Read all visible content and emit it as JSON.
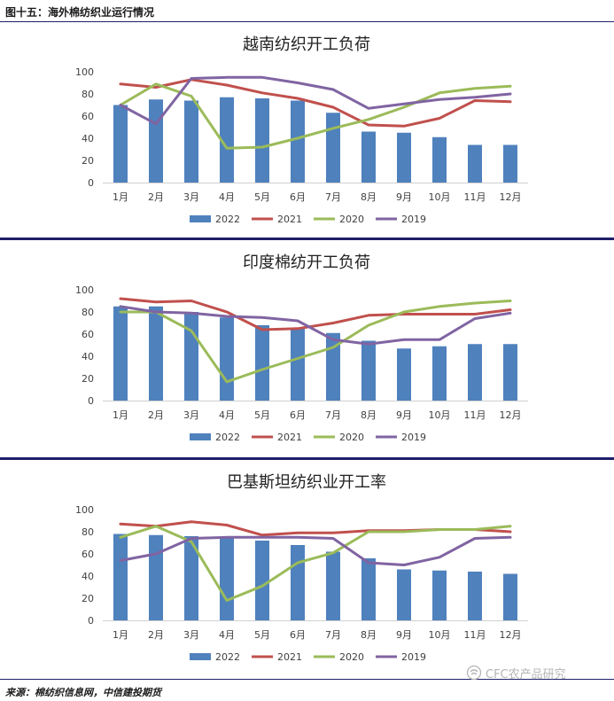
{
  "figure_title": "图十五：海外棉纺织业运行情况",
  "source": "来源：棉纺织信息网，中信建投期货",
  "watermark": "CFC农产品研究",
  "colors": {
    "2022": "#4f81bd",
    "2021": "#c0504d",
    "2020": "#9bbb59",
    "2019": "#8064a2"
  },
  "chart_data": [
    {
      "type": "bar",
      "title": "越南纺织开工负荷",
      "categories": [
        "1月",
        "2月",
        "3月",
        "4月",
        "5月",
        "6月",
        "7月",
        "8月",
        "9月",
        "10月",
        "11月",
        "12月"
      ],
      "ylim": [
        0,
        100
      ],
      "yticks": [
        0,
        20,
        40,
        60,
        80,
        100
      ],
      "grid": false,
      "legend": "bottom",
      "series": [
        {
          "name": "2022",
          "type": "bar",
          "values": [
            70,
            75,
            74,
            77,
            76,
            74,
            63,
            46,
            45,
            41,
            34,
            34
          ]
        },
        {
          "name": "2021",
          "type": "line",
          "values": [
            89,
            86,
            93,
            88,
            81,
            76,
            68,
            52,
            51,
            58,
            74,
            73
          ]
        },
        {
          "name": "2020",
          "type": "line",
          "values": [
            70,
            89,
            78,
            31,
            32,
            40,
            49,
            57,
            68,
            81,
            85,
            87
          ]
        },
        {
          "name": "2019",
          "type": "line",
          "values": [
            70,
            53,
            94,
            95,
            95,
            90,
            84,
            67,
            71,
            75,
            77,
            80
          ]
        }
      ]
    },
    {
      "type": "bar",
      "title": "印度棉纺开工负荷",
      "categories": [
        "1月",
        "2月",
        "3月",
        "4月",
        "5月",
        "6月",
        "7月",
        "8月",
        "9月",
        "10月",
        "11月",
        "12月"
      ],
      "ylim": [
        0,
        100
      ],
      "yticks": [
        0,
        20,
        40,
        60,
        80,
        100
      ],
      "grid": false,
      "legend": "bottom",
      "series": [
        {
          "name": "2022",
          "type": "bar",
          "values": [
            85,
            85,
            80,
            75,
            68,
            65,
            61,
            54,
            47,
            49,
            51,
            51
          ]
        },
        {
          "name": "2021",
          "type": "line",
          "values": [
            92,
            89,
            90,
            80,
            64,
            65,
            70,
            77,
            78,
            78,
            78,
            82
          ]
        },
        {
          "name": "2020",
          "type": "line",
          "values": [
            80,
            80,
            63,
            17,
            28,
            38,
            48,
            68,
            80,
            85,
            88,
            90
          ]
        },
        {
          "name": "2019",
          "type": "line",
          "values": [
            85,
            80,
            79,
            76,
            75,
            72,
            55,
            51,
            55,
            55,
            74,
            79
          ]
        }
      ]
    },
    {
      "type": "bar",
      "title": "巴基斯坦纺织业开工率",
      "categories": [
        "1月",
        "2月",
        "3月",
        "4月",
        "5月",
        "6月",
        "7月",
        "8月",
        "9月",
        "10月",
        "11月",
        "12月"
      ],
      "ylim": [
        0,
        100
      ],
      "yticks": [
        0,
        20,
        40,
        60,
        80,
        100
      ],
      "grid": false,
      "legend": "bottom",
      "series": [
        {
          "name": "2022",
          "type": "bar",
          "values": [
            78,
            77,
            76,
            75,
            72,
            68,
            62,
            56,
            46,
            45,
            44,
            42
          ]
        },
        {
          "name": "2021",
          "type": "line",
          "values": [
            87,
            85,
            89,
            86,
            77,
            79,
            79,
            81,
            81,
            82,
            82,
            80
          ]
        },
        {
          "name": "2020",
          "type": "line",
          "values": [
            75,
            85,
            71,
            18,
            31,
            52,
            61,
            80,
            80,
            82,
            82,
            85
          ]
        },
        {
          "name": "2019",
          "type": "line",
          "values": [
            54,
            60,
            74,
            75,
            75,
            75,
            74,
            52,
            50,
            57,
            74,
            75
          ]
        }
      ]
    }
  ]
}
